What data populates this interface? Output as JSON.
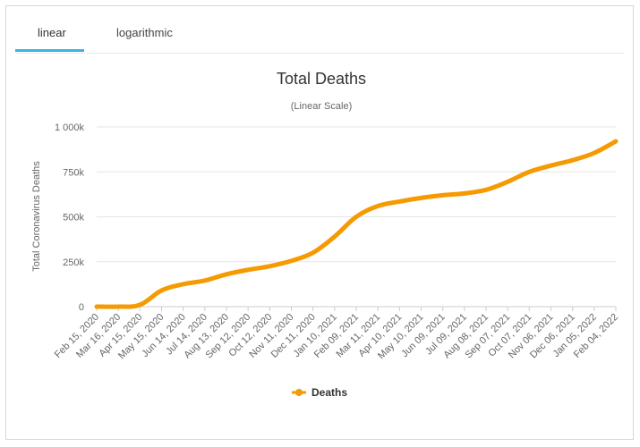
{
  "tabs": [
    {
      "label": "linear",
      "active": true
    },
    {
      "label": "logarithmic",
      "active": false
    }
  ],
  "chart_data": {
    "type": "line",
    "title": "Total Deaths",
    "subtitle": "(Linear Scale)",
    "ylabel": "Total Coronavirus Deaths",
    "xlabel": "",
    "ylim": [
      0,
      1000000
    ],
    "y_ticks": [
      {
        "value": 0,
        "label": "0"
      },
      {
        "value": 250000,
        "label": "250k"
      },
      {
        "value": 500000,
        "label": "500k"
      },
      {
        "value": 750000,
        "label": "750k"
      },
      {
        "value": 1000000,
        "label": "1 000k"
      }
    ],
    "x_tick_labels": [
      "Feb 15, 2020",
      "Mar 16, 2020",
      "Apr 15, 2020",
      "May 15, 2020",
      "Jun 14, 2020",
      "Jul 14, 2020",
      "Aug 13, 2020",
      "Sep 12, 2020",
      "Oct 12, 2020",
      "Nov 11, 2020",
      "Dec 11, 2020",
      "Jan 10, 2021",
      "Feb 09, 2021",
      "Mar 11, 2021",
      "Apr 10, 2021",
      "May 10, 2021",
      "Jun 09, 2021",
      "Jul 09, 2021",
      "Aug 08, 2021",
      "Sep 07, 2021",
      "Oct 07, 2021",
      "Nov 06, 2021",
      "Dec 06, 2021",
      "Jan 05, 2022",
      "Feb 04, 2022"
    ],
    "legend_position": "bottom-center",
    "grid": true,
    "colors": {
      "series": "#f59a00",
      "grid": "#e6e6e6",
      "axis": "#cccccc",
      "text": "#666666"
    },
    "series": [
      {
        "name": "Deaths",
        "x": [
          "Feb 15, 2020",
          "Mar 16, 2020",
          "Apr 15, 2020",
          "May 15, 2020",
          "Jun 14, 2020",
          "Jul 14, 2020",
          "Aug 13, 2020",
          "Sep 12, 2020",
          "Oct 12, 2020",
          "Nov 11, 2020",
          "Dec 11, 2020",
          "Jan 10, 2021",
          "Feb 09, 2021",
          "Mar 11, 2021",
          "Apr 10, 2021",
          "May 10, 2021",
          "Jun 09, 2021",
          "Jul 09, 2021",
          "Aug 08, 2021",
          "Sep 07, 2021",
          "Oct 07, 2021",
          "Nov 06, 2021",
          "Dec 06, 2021",
          "Jan 05, 2022",
          "Feb 04, 2022"
        ],
        "values": [
          0,
          0,
          10000,
          90000,
          125000,
          145000,
          180000,
          205000,
          225000,
          255000,
          300000,
          390000,
          500000,
          560000,
          585000,
          605000,
          620000,
          630000,
          650000,
          695000,
          750000,
          785000,
          815000,
          855000,
          920000
        ]
      }
    ]
  }
}
